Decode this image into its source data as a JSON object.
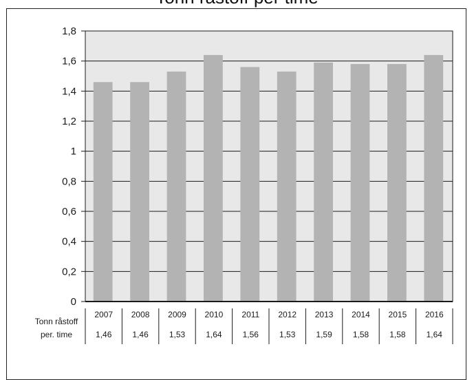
{
  "chart_data": {
    "type": "bar",
    "title": "Tonn råstoff per time",
    "categories": [
      "2007",
      "2008",
      "2009",
      "2010",
      "2011",
      "2012",
      "2013",
      "2014",
      "2015",
      "2016"
    ],
    "series": [
      {
        "name": "Tonn råstoff per. time",
        "values": [
          1.46,
          1.46,
          1.53,
          1.64,
          1.56,
          1.53,
          1.59,
          1.58,
          1.58,
          1.64
        ]
      }
    ],
    "value_labels": [
      "1,46",
      "1,46",
      "1,53",
      "1,64",
      "1,56",
      "1,53",
      "1,59",
      "1,58",
      "1,58",
      "1,64"
    ],
    "ylim": [
      0,
      1.8
    ],
    "yticks": [
      0,
      0.2,
      0.4,
      0.6,
      0.8,
      1,
      1.2,
      1.4,
      1.6,
      1.8
    ],
    "ytick_labels": [
      "0",
      "0,2",
      "0,4",
      "0,6",
      "0,8",
      "1",
      "1,2",
      "1,4",
      "1,6",
      "1,8"
    ],
    "table_row_label": [
      "Tonn råstoff",
      "per. time"
    ],
    "grid": true,
    "colors": {
      "bar": "#b3b3b3",
      "plot_bg": "#e8e8e8",
      "grid": "#1a1a1a"
    }
  }
}
